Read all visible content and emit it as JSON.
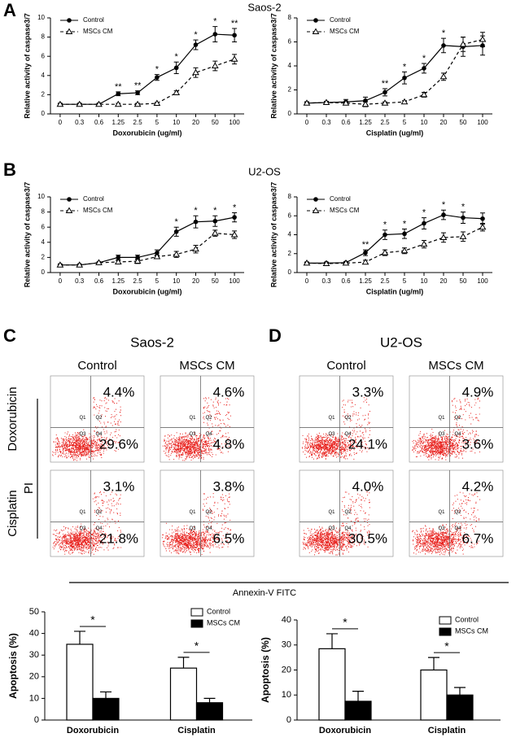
{
  "sections": [
    {
      "label": "A",
      "title": "Saos-2"
    },
    {
      "label": "B",
      "title": "U2-OS"
    }
  ],
  "chart_data": [
    {
      "type": "line",
      "xlabel": "Doxorubicin (ug/ml)",
      "ylabel": "Relative activity of caspase3/7",
      "categories": [
        "0",
        "0.3",
        "0.6",
        "1.25",
        "2.5",
        "5",
        "10",
        "20",
        "50",
        "100"
      ],
      "ylim": [
        0,
        10
      ],
      "yticks": [
        0,
        2,
        4,
        6,
        8,
        10
      ],
      "legend": "upper left",
      "series": [
        {
          "name": "Control",
          "color": "#000000",
          "line_style": "solid",
          "marker": "circle",
          "values": [
            1,
            1,
            1,
            2.1,
            2.2,
            3.8,
            4.8,
            7.2,
            8.3,
            8.2
          ],
          "errors": [
            0.1,
            0.1,
            0.1,
            0.2,
            0.2,
            0.3,
            0.6,
            0.5,
            0.8,
            0.7
          ]
        },
        {
          "name": "MSCs CM",
          "color": "#000000",
          "line_style": "dashed",
          "marker": "triangle-open",
          "values": [
            1,
            1,
            1,
            1,
            1,
            1.1,
            2.2,
            4.3,
            5.0,
            5.7
          ],
          "errors": [
            0.1,
            0.1,
            0.1,
            0.1,
            0.1,
            0.1,
            0.2,
            0.5,
            0.5,
            0.5
          ]
        }
      ],
      "annotations": [
        null,
        null,
        null,
        "**",
        "**",
        "*",
        "*",
        "*",
        "*",
        "**"
      ]
    },
    {
      "type": "line",
      "xlabel": "Cisplatin (ug/ml)",
      "ylabel": "Relative activity of caspase3/7",
      "categories": [
        "0",
        "0.3",
        "0.6",
        "1.25",
        "2.5",
        "5",
        "10",
        "20",
        "50",
        "100"
      ],
      "ylim": [
        0,
        8
      ],
      "yticks": [
        0,
        2,
        4,
        6,
        8
      ],
      "legend": "upper left",
      "series": [
        {
          "name": "Control",
          "color": "#000000",
          "line_style": "solid",
          "marker": "circle",
          "values": [
            0.9,
            0.95,
            1.0,
            1.1,
            1.8,
            3.0,
            3.8,
            5.7,
            5.6,
            5.7
          ],
          "errors": [
            0.1,
            0.1,
            0.2,
            0.3,
            0.3,
            0.5,
            0.4,
            0.6,
            0.8,
            0.8
          ]
        },
        {
          "name": "MSCs CM",
          "color": "#000000",
          "line_style": "dashed",
          "marker": "triangle-open",
          "values": [
            0.9,
            0.95,
            0.9,
            0.8,
            0.9,
            1.0,
            1.6,
            3.1,
            5.8,
            6.2
          ],
          "errors": [
            0.1,
            0.1,
            0.1,
            0.2,
            0.1,
            0.1,
            0.2,
            0.3,
            0.6,
            0.6
          ]
        }
      ],
      "annotations": [
        null,
        null,
        null,
        null,
        "**",
        "*",
        "*",
        "*",
        null,
        null
      ]
    },
    {
      "type": "line",
      "xlabel": "Doxorubicin (ug/ml)",
      "ylabel": "Relative activity of caspase3/7",
      "categories": [
        "0",
        "0.3",
        "0.6",
        "1.25",
        "2.5",
        "5",
        "10",
        "20",
        "50",
        "100"
      ],
      "ylim": [
        0,
        10
      ],
      "yticks": [
        0,
        2,
        4,
        6,
        8,
        10
      ],
      "legend": "upper left",
      "series": [
        {
          "name": "Control",
          "color": "#000000",
          "line_style": "solid",
          "marker": "circle",
          "values": [
            1,
            1,
            1.3,
            2.0,
            2.0,
            2.6,
            5.4,
            6.7,
            6.8,
            7.3
          ],
          "errors": [
            0.1,
            0.1,
            0.1,
            0.3,
            0.3,
            0.4,
            0.6,
            0.8,
            0.7,
            0.6
          ]
        },
        {
          "name": "MSCs CM",
          "color": "#000000",
          "line_style": "dashed",
          "marker": "triangle-open",
          "values": [
            1,
            1,
            1.3,
            1.4,
            1.5,
            2.1,
            2.4,
            3.1,
            5.2,
            5.0
          ],
          "errors": [
            0.1,
            0.1,
            0.1,
            0.2,
            0.3,
            0.2,
            0.4,
            0.5,
            0.4,
            0.5
          ]
        }
      ],
      "annotations": [
        null,
        null,
        null,
        null,
        null,
        null,
        "*",
        "*",
        "*",
        "*"
      ]
    },
    {
      "type": "line",
      "xlabel": "Cisplatin (ug/ml)",
      "ylabel": "Relative activity of caspase3/7",
      "categories": [
        "0",
        "0.3",
        "0.6",
        "1.25",
        "2.5",
        "5",
        "10",
        "20",
        "50",
        "100"
      ],
      "ylim": [
        0,
        8
      ],
      "yticks": [
        0,
        2,
        4,
        6,
        8
      ],
      "legend": "upper left",
      "series": [
        {
          "name": "Control",
          "color": "#000000",
          "line_style": "solid",
          "marker": "circle",
          "values": [
            1,
            1,
            1.05,
            2.1,
            4.0,
            4.1,
            5.2,
            6.1,
            5.8,
            5.7
          ],
          "errors": [
            0.1,
            0.1,
            0.1,
            0.3,
            0.5,
            0.5,
            0.6,
            0.5,
            0.6,
            0.6
          ]
        },
        {
          "name": "MSCs CM",
          "color": "#000000",
          "line_style": "dashed",
          "marker": "triangle-open",
          "values": [
            1,
            0.95,
            1.0,
            1.1,
            2.1,
            2.3,
            3.0,
            3.7,
            3.8,
            4.8
          ],
          "errors": [
            0.1,
            0.1,
            0.1,
            0.2,
            0.3,
            0.3,
            0.4,
            0.5,
            0.5,
            0.4
          ]
        }
      ],
      "annotations": [
        null,
        null,
        null,
        "**",
        "*",
        "*",
        "*",
        "*",
        "*",
        null
      ]
    },
    {
      "type": "bar",
      "ylabel": "Apoptosis (%)",
      "categories": [
        "Doxorubicin",
        "Cisplatin"
      ],
      "ylim": [
        0,
        50
      ],
      "yticks": [
        0,
        10,
        20,
        30,
        40,
        50
      ],
      "legend": "upper right",
      "series": [
        {
          "name": "Control",
          "color": "#ffffff",
          "values": [
            35,
            24
          ],
          "errors": [
            6,
            5
          ]
        },
        {
          "name": "MSCs CM",
          "color": "#000000",
          "values": [
            10,
            8
          ],
          "errors": [
            3,
            2
          ]
        }
      ],
      "annotations": [
        "*",
        "*"
      ]
    },
    {
      "type": "bar",
      "ylabel": "Apoptosis (%)",
      "categories": [
        "Doxorubicin",
        "Cisplatin"
      ],
      "ylim": [
        0,
        40
      ],
      "yticks": [
        0,
        10,
        20,
        30,
        40
      ],
      "legend": "upper right",
      "series": [
        {
          "name": "Control",
          "color": "#ffffff",
          "values": [
            28.5,
            20
          ],
          "errors": [
            6,
            5
          ]
        },
        {
          "name": "MSCs CM",
          "color": "#000000",
          "values": [
            7.5,
            10
          ],
          "errors": [
            4,
            3
          ]
        }
      ],
      "annotations": [
        "*",
        "*"
      ]
    }
  ],
  "flow": {
    "x_label": "Annexin-V FITC",
    "y_label": "PI",
    "rows": [
      "Doxorubicin",
      "Cisplatin"
    ],
    "quadrants": [
      "Q1",
      "Q2",
      "Q3",
      "Q4"
    ],
    "panels": [
      {
        "label": "C",
        "title": "Saos-2",
        "columns": [
          "Control",
          "MSCs CM"
        ],
        "plots": [
          [
            {
              "upper": "4.4%",
              "lower": "29.6%"
            },
            {
              "upper": "4.6%",
              "lower": "4.8%"
            }
          ],
          [
            {
              "upper": "3.1%",
              "lower": "21.8%"
            },
            {
              "upper": "3.8%",
              "lower": "6.5%"
            }
          ]
        ]
      },
      {
        "label": "D",
        "title": "U2-OS",
        "columns": [
          "Control",
          "MSCs CM"
        ],
        "plots": [
          [
            {
              "upper": "3.3%",
              "lower": "24.1%"
            },
            {
              "upper": "4.9%",
              "lower": "3.6%"
            }
          ],
          [
            {
              "upper": "4.0%",
              "lower": "30.5%"
            },
            {
              "upper": "4.2%",
              "lower": "6.7%"
            }
          ]
        ]
      }
    ]
  }
}
